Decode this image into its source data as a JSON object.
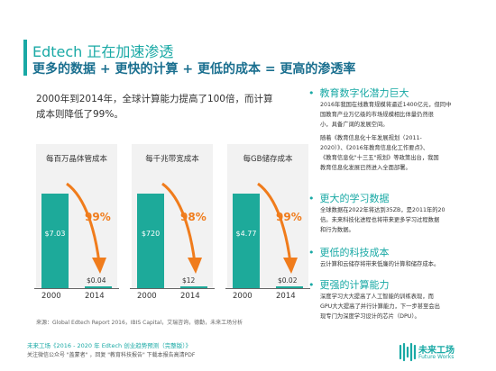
{
  "header": {
    "title": "Edtech 正在加速渗透",
    "subtitle": "更多的数据 + 更快的计算 + 更低的成本 = 更高的渗透率"
  },
  "intro": "2000年到2014年，全球计算能力提高了100倍，而计算成本则降低了99%。",
  "chart_data": [
    {
      "type": "bar",
      "title": "每百万晶体管成本",
      "categories": [
        "2000",
        "2014"
      ],
      "values": [
        7.03,
        0.04
      ],
      "value_labels": [
        "$7.03",
        "$0.04"
      ],
      "annotation": "99%",
      "color": "#1daa9a",
      "arrow_color": "#f07c1c"
    },
    {
      "type": "bar",
      "title": "每千兆带宽成本",
      "categories": [
        "2000",
        "2014"
      ],
      "values": [
        720,
        12
      ],
      "value_labels": [
        "$720",
        "$12"
      ],
      "annotation": "98%",
      "color": "#1daa9a",
      "arrow_color": "#f07c1c"
    },
    {
      "type": "bar",
      "title": "每GB储存成本",
      "categories": [
        "2000",
        "2014"
      ],
      "values": [
        4.77,
        0.02
      ],
      "value_labels": [
        "$4.77",
        "$0.02"
      ],
      "annotation": "99%",
      "color": "#1daa9a",
      "arrow_color": "#f07c1c"
    }
  ],
  "source": "来源：Global Edtech Report 2016，IBIS Capital，艾瑞咨询，德勤，未来工场分析",
  "footer": {
    "line1": "未来工场《2016 - 2020 年 Edtech 创业趋势预测（完整版）》",
    "line2": "关注微信公众号 \"盖蒙者\" ，回复 \"教育科技报告\" 下载本报告高清PDF"
  },
  "logo": {
    "name": "未来工场",
    "sub": "Future Works"
  },
  "sections": [
    {
      "heading": "教育数字化潜力巨大",
      "body": [
        "2016年我国在线教育规模将逼近1400亿元，但同中",
        "国教育产业万亿级的市场规模相比体量仍然很",
        "小，具备广阔的发展空间。",
        "",
        "随着《教育信息化十年发展规划（2011-",
        "2020）》、《2016年教育信息化工作要点》、",
        "《教育信息化\"十三五\"规划》等政策出台，我国",
        "教育信息化发展已然进入全面部署。"
      ]
    },
    {
      "heading": "更大的学习数据",
      "body": [
        "全球数据在2022年将达到35ZB，是2011年的20",
        "倍。未来科技化进程也将带来更多学习过程数据",
        "和行为数据。"
      ]
    },
    {
      "heading": "更低的科技成本",
      "body": [
        "云计算和云储存将带来低廉的计算和储存成本。"
      ]
    },
    {
      "heading": "更强的计算能力",
      "body": [
        "深度学习大大提高了人工智能的训练表现，而",
        "GPU大大提高了并行计算能力，下一步甚至会出",
        "现专门为深度学习设计的芯片（DPU）。"
      ]
    }
  ]
}
